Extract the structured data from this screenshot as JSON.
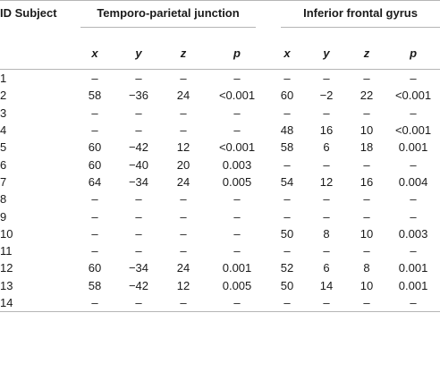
{
  "table": {
    "subject_header": "ID Subject",
    "groups": [
      {
        "label": "Temporo-parietal junction"
      },
      {
        "label": "Inferior frontal gyrus"
      }
    ],
    "coord_headers": [
      "x",
      "y",
      "z",
      "p",
      "x",
      "y",
      "z",
      "p"
    ],
    "rows": [
      [
        "1",
        "–",
        "–",
        "–",
        "–",
        "–",
        "–",
        "–",
        "–"
      ],
      [
        "2",
        "58",
        "−36",
        "24",
        "<0.001",
        "60",
        "−2",
        "22",
        "<0.001"
      ],
      [
        "3",
        "–",
        "–",
        "–",
        "–",
        "–",
        "–",
        "–",
        "–"
      ],
      [
        "4",
        "–",
        "–",
        "–",
        "–",
        "48",
        "16",
        "10",
        "<0.001"
      ],
      [
        "5",
        "60",
        "−42",
        "12",
        "<0.001",
        "58",
        "6",
        "18",
        "0.001"
      ],
      [
        "6",
        "60",
        "−40",
        "20",
        "0.003",
        "–",
        "–",
        "–",
        "–"
      ],
      [
        "7",
        "64",
        "−34",
        "24",
        "0.005",
        "54",
        "12",
        "16",
        "0.004"
      ],
      [
        "8",
        "–",
        "–",
        "–",
        "–",
        "–",
        "–",
        "–",
        "–"
      ],
      [
        "9",
        "–",
        "–",
        "–",
        "–",
        "–",
        "–",
        "–",
        "–"
      ],
      [
        "10",
        "–",
        "–",
        "–",
        "–",
        "50",
        "8",
        "10",
        "0.003"
      ],
      [
        "11",
        "–",
        "–",
        "–",
        "–",
        "–",
        "–",
        "–",
        "–"
      ],
      [
        "12",
        "60",
        "−34",
        "24",
        "0.001",
        "52",
        "6",
        "8",
        "0.001"
      ],
      [
        "13",
        "58",
        "−42",
        "12",
        "0.005",
        "50",
        "14",
        "10",
        "0.001"
      ],
      [
        "14",
        "–",
        "–",
        "–",
        "–",
        "–",
        "–",
        "–",
        "–"
      ]
    ]
  }
}
